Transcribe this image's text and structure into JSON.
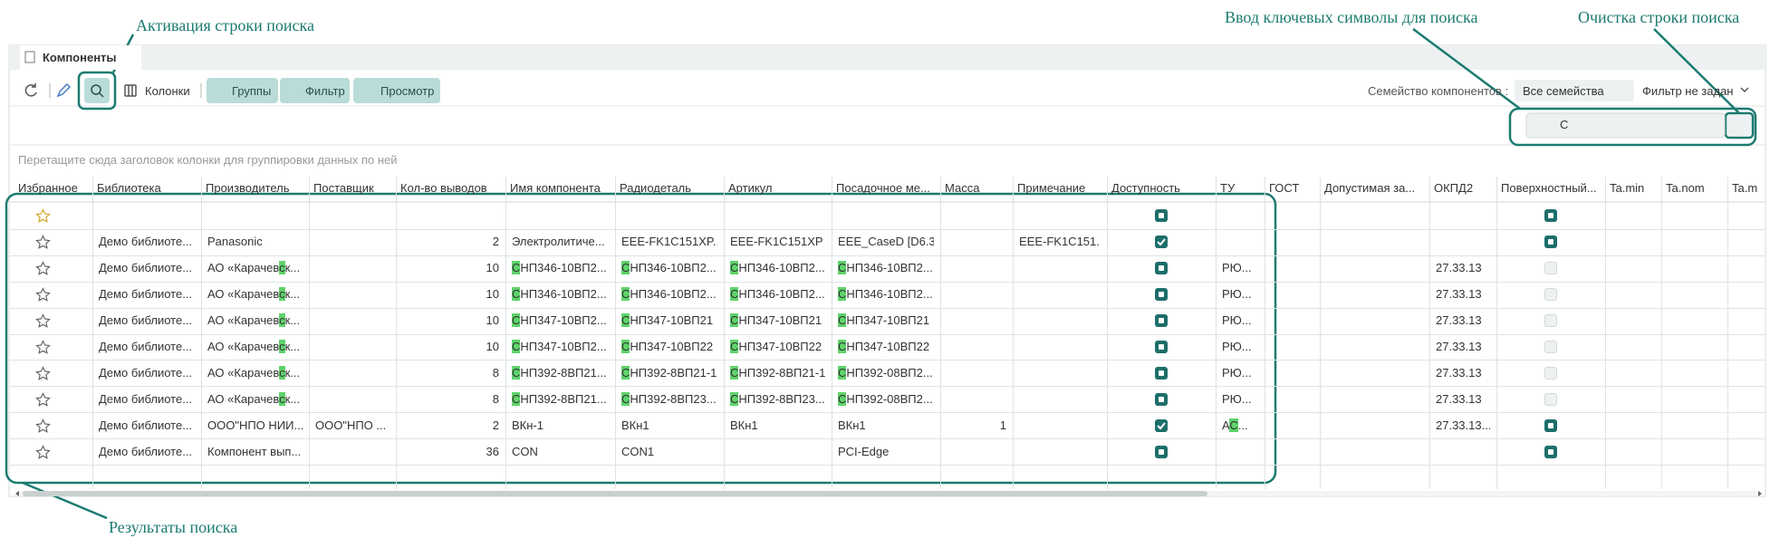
{
  "annotations": {
    "activate": "Активация строки поиска",
    "input": "Ввод ключевых символы для поиска",
    "clear": "Очистка строки поиска",
    "results": "Результаты поиска"
  },
  "tab": {
    "title": "Компоненты"
  },
  "toolbar": {
    "columns": "Колонки",
    "groups": "Группы",
    "filter": "Фильтр",
    "view": "Просмотр",
    "family_label": "Семейство компонентов :",
    "family_value": "Все семейства",
    "filter_value": "Фильтр не задан"
  },
  "search": {
    "value": "С"
  },
  "group_hint": "Перетащите сюда заголовок колонки для группировки данных по ней",
  "table": {
    "columns": [
      "Избранное",
      "Библиотека",
      "Производитель",
      "Поставщик",
      "Кол-во выводов",
      "Имя компонента",
      "Радиодеталь",
      "Артикул",
      "Посадочное ме...",
      "Масса",
      "Примечание",
      "Доступность",
      "ТУ",
      "ГОСТ",
      "Допустимая за...",
      "ОКПД2",
      "Поверхностный...",
      "Ta.min",
      "Ta.nom",
      "Ta.m"
    ],
    "rows": [
      [
        null,
        null,
        null,
        null,
        null,
        null,
        null,
        null,
        null,
        null,
        false,
        null,
        null,
        null,
        null,
        false,
        null,
        null,
        null
      ],
      [
        "Демо библиоте...",
        "Panasonic",
        null,
        2,
        "Электролитиче...",
        "EEE-FK1C151XP...",
        "EEE-FK1C151XP",
        "EEE_CaseD [D6.3]",
        null,
        "EEE-FK1C151...",
        true,
        null,
        null,
        null,
        null,
        false,
        null,
        null,
        null
      ],
      [
        "Демо библиоте...",
        "АО «Карачевск...",
        null,
        10,
        "СНП346-10ВП2...",
        "СНП346-10ВП2...",
        "СНП346-10ВП2...",
        "СНП346-10ВП2...",
        null,
        null,
        false,
        "РЮ...",
        null,
        null,
        "27.33.13",
        null,
        null,
        null,
        null
      ],
      [
        "Демо библиоте...",
        "АО «Карачевск...",
        null,
        10,
        "СНП346-10ВП2...",
        "СНП346-10ВП2...",
        "СНП346-10ВП2...",
        "СНП346-10ВП2...",
        null,
        null,
        false,
        "РЮ...",
        null,
        null,
        "27.33.13",
        null,
        null,
        null,
        null
      ],
      [
        "Демо библиоте...",
        "АО «Карачевск...",
        null,
        10,
        "СНП347-10ВП2...",
        "СНП347-10ВП21",
        "СНП347-10ВП21",
        "СНП347-10ВП21",
        null,
        null,
        false,
        "РЮ...",
        null,
        null,
        "27.33.13",
        null,
        null,
        null,
        null
      ],
      [
        "Демо библиоте...",
        "АО «Карачевск...",
        null,
        10,
        "СНП347-10ВП2...",
        "СНП347-10ВП22",
        "СНП347-10ВП22",
        "СНП347-10ВП22",
        null,
        null,
        false,
        "РЮ...",
        null,
        null,
        "27.33.13",
        null,
        null,
        null,
        null
      ],
      [
        "Демо библиоте...",
        "АО «Карачевск...",
        null,
        8,
        "СНП392-8ВП21...",
        "СНП392-8ВП21-1",
        "СНП392-8ВП21-1",
        "СНП392-08ВП2...",
        null,
        null,
        false,
        "РЮ...",
        null,
        null,
        "27.33.13",
        null,
        null,
        null,
        null
      ],
      [
        "Демо библиоте...",
        "АО «Карачевск...",
        null,
        8,
        "СНП392-8ВП21...",
        "СНП392-8ВП23...",
        "СНП392-8ВП23...",
        "СНП392-08ВП2...",
        null,
        null,
        false,
        "РЮ...",
        null,
        null,
        "27.33.13",
        null,
        null,
        null,
        null
      ],
      [
        "Демо библиоте...",
        "ООО\"НПО НИИ...",
        "ООО\"НПО ...",
        2,
        "ВКн-1",
        "ВКн1",
        "ВКн1",
        "ВКн1",
        1,
        null,
        true,
        "АС...",
        null,
        null,
        "27.33.13...",
        false,
        null,
        null,
        null
      ],
      [
        "Демо библиоте...",
        "Компонент вып...",
        null,
        36,
        "CON",
        "CON1",
        null,
        "PCI-Edge",
        null,
        null,
        false,
        null,
        null,
        null,
        null,
        false,
        null,
        null,
        null
      ]
    ]
  }
}
